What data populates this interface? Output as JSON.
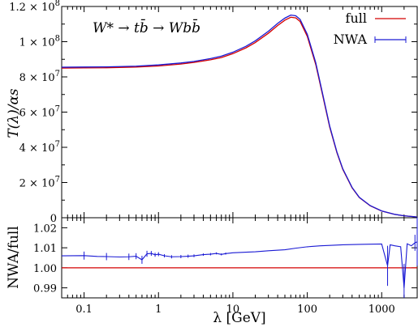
{
  "chart_data": [
    {
      "type": "line",
      "panel": "main",
      "process_label": "W* → tb̄ → Wbb̄",
      "ylabel": "T(λ)/αs",
      "xscale": "log",
      "xlim": [
        0.05,
        3000
      ],
      "ylim": [
        0,
        120000000.0
      ],
      "xticks": [
        {
          "value": 0.1,
          "label": "0.1"
        },
        {
          "value": 1,
          "label": "1"
        },
        {
          "value": 10,
          "label": "10"
        },
        {
          "value": 100,
          "label": "100"
        },
        {
          "value": 1000,
          "label": "1000"
        }
      ],
      "yticks": [
        {
          "value": 0,
          "label": "0"
        },
        {
          "value": 20000000.0,
          "label": "2 × 10",
          "exp": "7"
        },
        {
          "value": 40000000.0,
          "label": "4 × 10",
          "exp": "7"
        },
        {
          "value": 60000000.0,
          "label": "6 × 10",
          "exp": "7"
        },
        {
          "value": 80000000.0,
          "label": "8 × 10",
          "exp": "7"
        },
        {
          "value": 100000000.0,
          "label": "1 × 10",
          "exp": "8"
        },
        {
          "value": 120000000.0,
          "label": "1.2 × 10",
          "exp": "8"
        }
      ],
      "legend_position": "top-right",
      "series": [
        {
          "name": "full",
          "color": "#d40000",
          "x": [
            0.05,
            0.1,
            0.2,
            0.5,
            1,
            2,
            3,
            5,
            7,
            10,
            15,
            20,
            30,
            40,
            50,
            60,
            70,
            80,
            100,
            130,
            160,
            200,
            250,
            300,
            400,
            500,
            700,
            1000,
            1500,
            2000,
            3000
          ],
          "y": [
            85000000,
            85100000,
            85200000,
            85600000,
            86200000,
            87300000,
            88200000,
            89700000,
            91000000,
            93200000,
            96500000,
            99500000,
            104800000,
            109200000,
            112200000,
            113900000,
            113500000,
            111500000,
            103000000,
            87000000,
            70000000,
            51500000,
            37000000,
            27500000,
            17000000,
            11500000,
            6800000,
            3800000,
            1900000,
            1100000,
            400000
          ]
        },
        {
          "name": "NWA",
          "color": "#1a1ad4",
          "marker": "errorbar",
          "x": [
            0.05,
            0.1,
            0.2,
            0.5,
            1,
            2,
            3,
            5,
            7,
            10,
            15,
            20,
            30,
            40,
            50,
            60,
            70,
            80,
            100,
            130,
            160,
            200,
            250,
            300,
            400,
            500,
            700,
            1000,
            1500,
            2000,
            3000
          ],
          "y": [
            85500000,
            85600000,
            85700000,
            86100000,
            86800000,
            87900000,
            88800000,
            90400000,
            91800000,
            94000000,
            97400000,
            100500000,
            105900000,
            110400000,
            113400000,
            115100000,
            114700000,
            112700000,
            104200000,
            88000000,
            70800000,
            52100000,
            37400000,
            27800000,
            17200000,
            11600000,
            6900000,
            3850000,
            1920000,
            1110000,
            410000
          ]
        }
      ]
    },
    {
      "type": "line",
      "panel": "ratio",
      "xlabel": "λ [GeV]",
      "ylabel": "NWA/full",
      "xscale": "log",
      "xlim": [
        0.05,
        3000
      ],
      "ylim": [
        0.985,
        1.025
      ],
      "yticks": [
        {
          "value": 0.99,
          "label": "0.99"
        },
        {
          "value": 1.0,
          "label": "1.00"
        },
        {
          "value": 1.01,
          "label": "1.01"
        },
        {
          "value": 1.02,
          "label": "1.02"
        }
      ],
      "reference_line": {
        "y": 1.0,
        "color": "#d40000"
      },
      "series": [
        {
          "color": "#1a1ad4",
          "x": [
            0.05,
            0.1,
            0.15,
            0.2,
            0.3,
            0.4,
            0.5,
            0.6,
            0.7,
            0.8,
            0.9,
            1.0,
            1.2,
            1.5,
            2,
            2.5,
            3,
            4,
            5,
            6,
            7,
            8,
            10,
            15,
            20,
            30,
            50,
            70,
            100,
            150,
            200,
            300,
            500,
            700,
            1000,
            1200,
            1300,
            1500,
            1800,
            2000,
            2200,
            2500,
            2800,
            3000
          ],
          "y": [
            1.006,
            1.0061,
            1.0057,
            1.0056,
            1.0054,
            1.0055,
            1.0058,
            1.004,
            1.007,
            1.0072,
            1.0065,
            1.0068,
            1.006,
            1.0055,
            1.0056,
            1.0058,
            1.006,
            1.0066,
            1.0068,
            1.0072,
            1.0067,
            1.0071,
            1.0075,
            1.0078,
            1.008,
            1.0085,
            1.009,
            1.0098,
            1.0105,
            1.011,
            1.0112,
            1.0115,
            1.0117,
            1.0118,
            1.0119,
            1.001,
            1.0115,
            1.011,
            1.0105,
            0.99,
            1.012,
            1.011,
            1.0125,
            1.013
          ],
          "err": [
            0.0,
            0.002,
            0.0,
            0.0018,
            0.0,
            0.0016,
            0.0015,
            0.002,
            0.0015,
            0.0012,
            0.001,
            0.001,
            0.0008,
            0.0008,
            0.0008,
            0.0008,
            0.0007,
            0.0006,
            0.0006,
            0.0005,
            0.0005,
            0.0005,
            0.0,
            0.0,
            0.0,
            0.0,
            0.0,
            0.0,
            0.0,
            0.0,
            0.0,
            0.0,
            0.0,
            0.0,
            0.0,
            0.01,
            0.0,
            0.0,
            0.0,
            0.012,
            0.0,
            0.0,
            0.004,
            0.012
          ]
        }
      ]
    }
  ]
}
